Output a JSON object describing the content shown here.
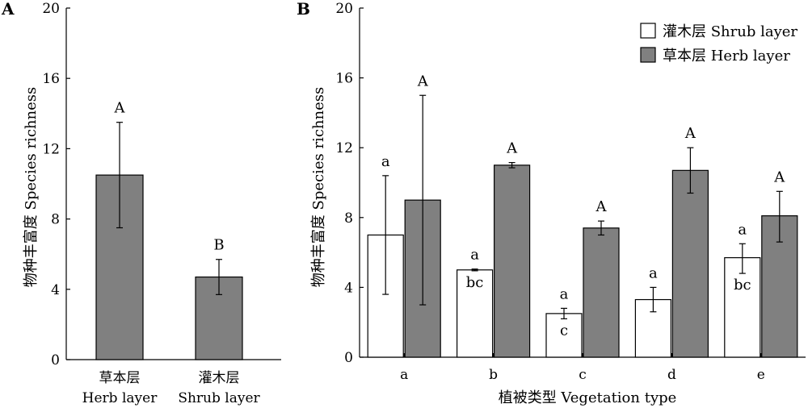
{
  "chart_data": [
    {
      "panel_label": "A",
      "type": "bar",
      "ylabel": "物种丰富度 Species richness",
      "xlabel": "",
      "ylim": [
        0,
        20
      ],
      "yticks": [
        0,
        4,
        8,
        12,
        16,
        20
      ],
      "categories": [
        {
          "line1": "草本层",
          "line2": "Herb layer"
        },
        {
          "line1": "灌木层",
          "line2": "Shrub layer"
        }
      ],
      "bars": [
        {
          "value": 10.5,
          "err_low": 7.5,
          "err_high": 13.5,
          "sig": "A",
          "color": "#808080"
        },
        {
          "value": 4.7,
          "err_low": 3.7,
          "err_high": 5.7,
          "sig": "B",
          "color": "#808080"
        }
      ]
    },
    {
      "panel_label": "B",
      "type": "bar",
      "ylabel": "物种丰富度 Species richness",
      "xlabel": "植被类型 Vegetation type",
      "ylim": [
        0,
        20
      ],
      "yticks": [
        0,
        4,
        8,
        12,
        16,
        20
      ],
      "categories": [
        "a",
        "b",
        "c",
        "d",
        "e"
      ],
      "legend": [
        {
          "label": "灌木层 Shrub layer",
          "color": "#ffffff"
        },
        {
          "label": "草本层 Herb layer",
          "color": "#808080"
        }
      ],
      "series": [
        {
          "name": "灌木层 Shrub layer",
          "color": "#ffffff",
          "values": [
            7.0,
            5.0,
            2.5,
            3.3,
            5.7
          ],
          "err_low": [
            3.6,
            4.95,
            2.2,
            2.6,
            4.8
          ],
          "err_high": [
            10.4,
            5.05,
            2.8,
            4.0,
            6.5
          ],
          "sig_above": [
            "a",
            "a",
            "a",
            "a",
            "a"
          ],
          "sig_below": [
            "",
            "bc",
            "c",
            "",
            "bc"
          ]
        },
        {
          "name": "草本层 Herb layer",
          "color": "#808080",
          "values": [
            9.0,
            11.0,
            7.4,
            10.7,
            8.1
          ],
          "err_low": [
            3.0,
            10.85,
            7.0,
            9.4,
            6.6
          ],
          "err_high": [
            15.0,
            11.15,
            7.8,
            12.0,
            9.5
          ],
          "sig_above": [
            "A",
            "A",
            "A",
            "A",
            "A"
          ]
        }
      ]
    }
  ]
}
